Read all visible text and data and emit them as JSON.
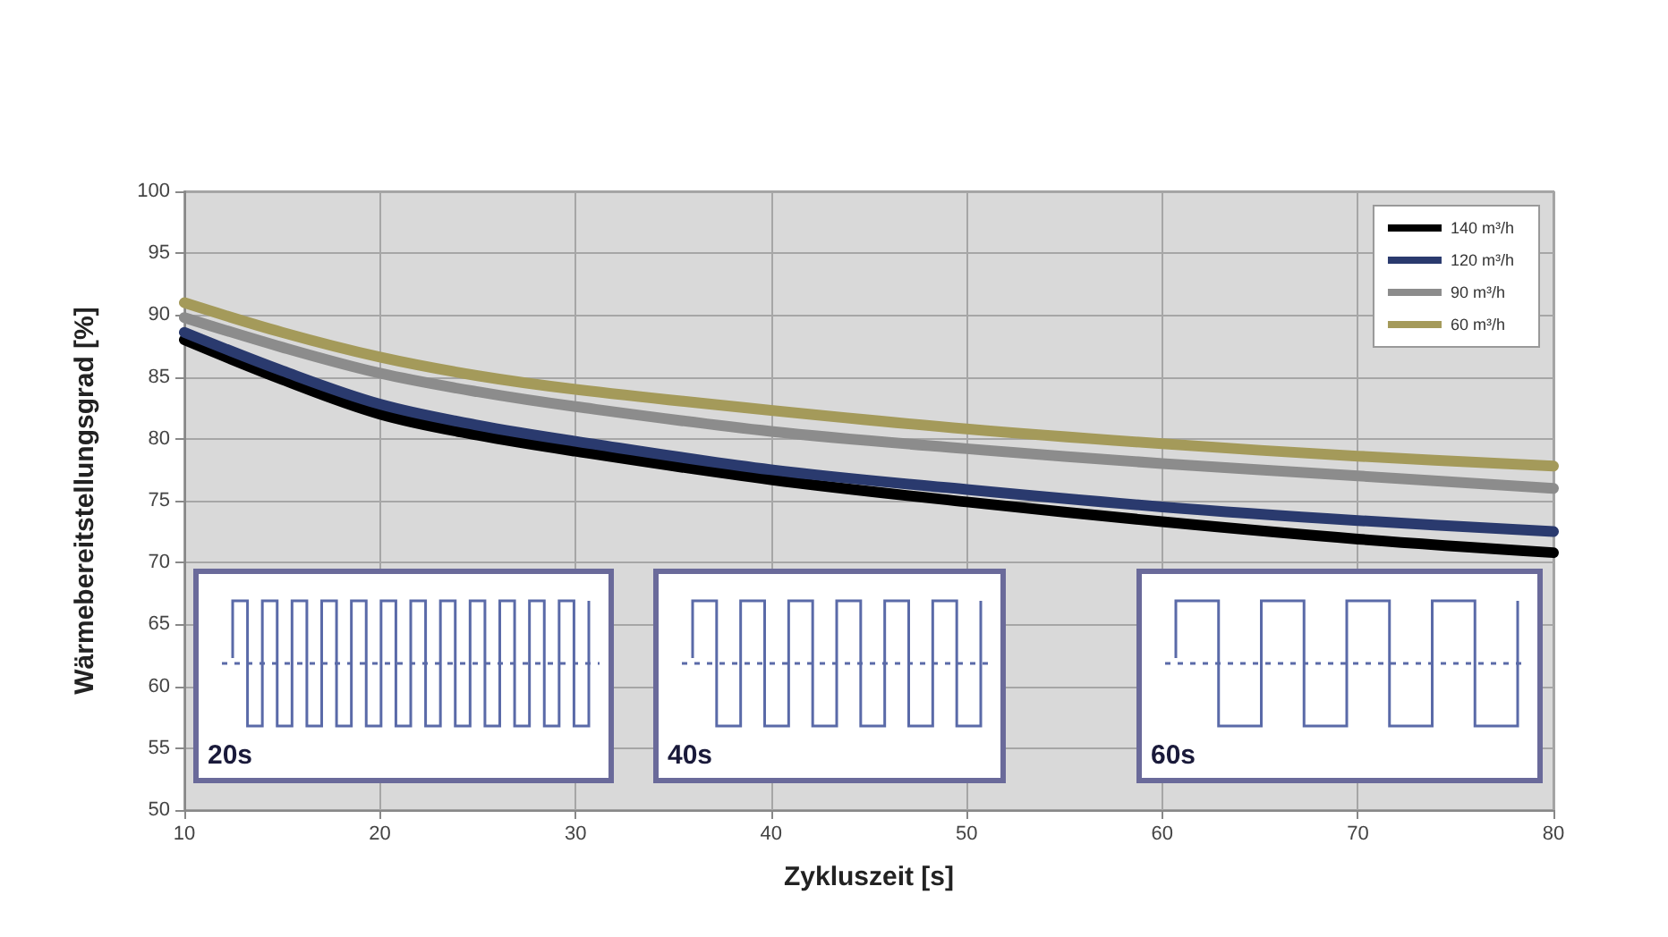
{
  "chart_data": {
    "type": "line",
    "xlabel": "Zykluszeit [s]",
    "ylabel": "Wärmebereitstellungsgrad [%]",
    "x": [
      10,
      15,
      20,
      25,
      30,
      40,
      50,
      60,
      70,
      80
    ],
    "series": [
      {
        "name": "140 m³/h",
        "color": "#000000",
        "values": [
          88,
          84.8,
          82,
          80.3,
          79,
          76.7,
          74.9,
          73.3,
          71.9,
          70.8
        ]
      },
      {
        "name": "120 m³/h",
        "color": "#2a3a6e",
        "values": [
          88.6,
          85.5,
          82.8,
          81.1,
          79.8,
          77.5,
          75.9,
          74.5,
          73.4,
          72.5
        ]
      },
      {
        "name": "90 m³/h",
        "color": "#8c8c8c",
        "values": [
          89.8,
          87.4,
          85.3,
          83.8,
          82.6,
          80.6,
          79.2,
          78,
          77,
          76
        ]
      },
      {
        "name": "60 m³/h",
        "color": "#a49a5a",
        "values": [
          91,
          88.6,
          86.6,
          85.1,
          84,
          82.3,
          80.8,
          79.6,
          78.6,
          77.8
        ]
      }
    ],
    "xlim": [
      10,
      80
    ],
    "xticks": [
      10,
      20,
      30,
      40,
      50,
      60,
      70,
      80
    ],
    "ylim": [
      50,
      100
    ],
    "yticks": [
      50,
      55,
      60,
      65,
      70,
      75,
      80,
      85,
      90,
      95,
      100
    ],
    "grid": true,
    "legend": "top right",
    "marker": "none",
    "annotations": [
      "20s",
      "40s",
      "60s"
    ]
  }
}
